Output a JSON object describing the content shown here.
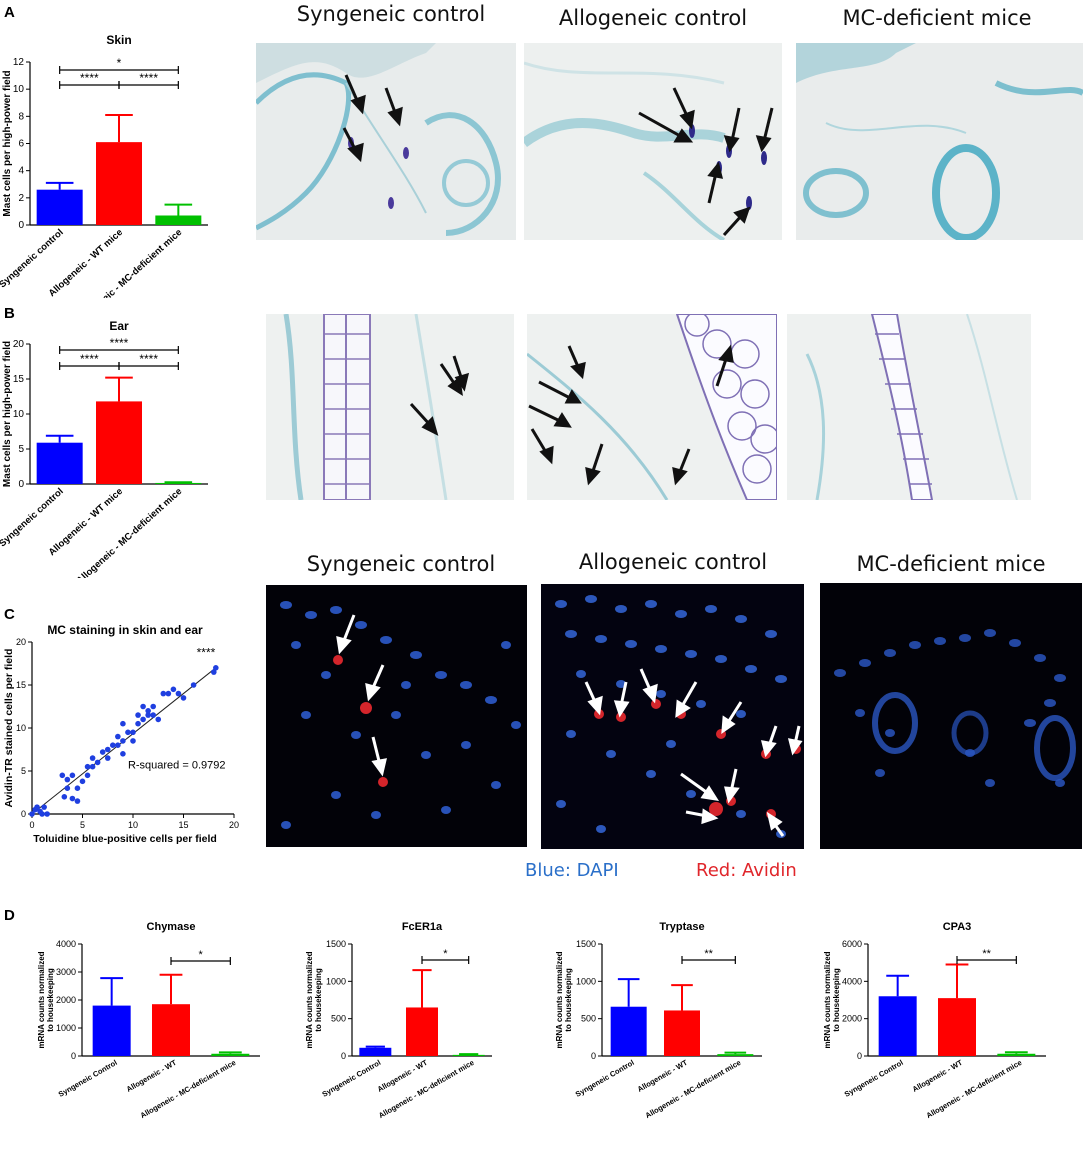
{
  "panels": {
    "A": {
      "letter": "A"
    },
    "B": {
      "letter": "B"
    },
    "C": {
      "letter": "C"
    },
    "D": {
      "letter": "D"
    }
  },
  "headers": {
    "row1": [
      "Syngeneic control",
      "Allogeneic control",
      "MC-deficient mice"
    ],
    "row3": [
      "Syngeneic control",
      "Allogeneic control",
      "MC-deficient mice"
    ]
  },
  "legend": {
    "blue": "Blue: DAPI",
    "red": "Red: Avidin",
    "blue_color": "#2a6fc9",
    "red_color": "#e0262b"
  },
  "colors": {
    "syngeneic": "#0000ff",
    "allogeneic": "#ff0000",
    "deficient": "#00c000",
    "scatter": "#1f3fe0"
  },
  "chart_data": [
    {
      "id": "A",
      "type": "bar",
      "title": "Skin",
      "ylabel": "Mast cells per high-power field",
      "xlabel": "",
      "categories": [
        "Syngeneic control",
        "Allogeneic - WT mice",
        "Allogeneic - MC-deficient mice"
      ],
      "values": [
        2.6,
        6.1,
        0.7
      ],
      "errors": [
        0.5,
        2.0,
        0.8
      ],
      "ylim": [
        0,
        12
      ],
      "yticks": [
        0,
        2,
        4,
        6,
        8,
        10,
        12
      ],
      "significance": [
        {
          "from": 0,
          "to": 1,
          "label": "****",
          "level": 1
        },
        {
          "from": 1,
          "to": 2,
          "label": "****",
          "level": 1
        },
        {
          "from": 0,
          "to": 2,
          "label": "*",
          "level": 2
        }
      ]
    },
    {
      "id": "B",
      "type": "bar",
      "title": "Ear",
      "ylabel": "Mast cells per high-power field",
      "xlabel": "",
      "categories": [
        "Syngeneic control",
        "Allogeneic - WT mice",
        "Allogeneic - MC-deficient mice"
      ],
      "values": [
        5.9,
        11.8,
        0.15
      ],
      "errors": [
        1.0,
        3.4,
        0.1
      ],
      "ylim": [
        0,
        20
      ],
      "yticks": [
        0,
        5,
        10,
        15,
        20
      ],
      "significance": [
        {
          "from": 0,
          "to": 1,
          "label": "****",
          "level": 1
        },
        {
          "from": 1,
          "to": 2,
          "label": "****",
          "level": 1
        },
        {
          "from": 0,
          "to": 2,
          "label": "****",
          "level": 2
        }
      ]
    },
    {
      "id": "C",
      "type": "scatter",
      "title": "MC staining in skin and ear",
      "xlabel": "Toluidine blue-positive cells per field",
      "ylabel": "Avidin-TR stained cells per field",
      "xlim": [
        0,
        20
      ],
      "ylim": [
        0,
        20
      ],
      "xticks": [
        0,
        5,
        10,
        15,
        20
      ],
      "yticks": [
        0,
        5,
        10,
        15,
        20
      ],
      "annotation": "R-squared = 0.9792",
      "significance": "****",
      "fit": {
        "x": [
          0,
          18.2
        ],
        "y": [
          0,
          17.0
        ]
      },
      "points": [
        [
          0,
          0
        ],
        [
          0.3,
          0.5
        ],
        [
          0.5,
          0.8
        ],
        [
          0.8,
          0.3
        ],
        [
          1,
          0
        ],
        [
          1.2,
          0.8
        ],
        [
          1.5,
          0
        ],
        [
          3,
          4.5
        ],
        [
          3.2,
          2
        ],
        [
          3.5,
          3
        ],
        [
          3.5,
          4
        ],
        [
          4,
          4.5
        ],
        [
          4,
          1.8
        ],
        [
          4.5,
          1.5
        ],
        [
          4.5,
          3
        ],
        [
          5,
          3.8
        ],
        [
          5.5,
          4.5
        ],
        [
          5.5,
          5.5
        ],
        [
          6,
          5.5
        ],
        [
          6,
          6.5
        ],
        [
          6.5,
          6
        ],
        [
          7,
          7.2
        ],
        [
          7.5,
          7.5
        ],
        [
          7.5,
          6.5
        ],
        [
          8,
          8
        ],
        [
          8.5,
          8
        ],
        [
          8.5,
          9
        ],
        [
          9,
          8.5
        ],
        [
          9,
          7
        ],
        [
          9.5,
          9.5
        ],
        [
          9,
          10.5
        ],
        [
          10,
          8.5
        ],
        [
          10,
          9.5
        ],
        [
          10.5,
          10.5
        ],
        [
          10.5,
          11.5
        ],
        [
          11,
          11
        ],
        [
          11,
          12.5
        ],
        [
          11.5,
          11.5
        ],
        [
          11.5,
          12
        ],
        [
          12,
          12.5
        ],
        [
          12,
          11.5
        ],
        [
          12.5,
          11
        ],
        [
          13,
          14
        ],
        [
          13.5,
          14
        ],
        [
          14,
          14.5
        ],
        [
          14.5,
          14
        ],
        [
          15,
          13.5
        ],
        [
          16,
          15
        ],
        [
          18,
          16.5
        ],
        [
          18.2,
          17
        ]
      ]
    },
    {
      "id": "D1",
      "type": "bar",
      "title": "Chymase",
      "ylabel": "mRNA counts normalized to housekeeping",
      "xlabel": "",
      "categories": [
        "Syngeneic Control",
        "Allogeneic - WT",
        "Allogeneic - MC-deficient mice"
      ],
      "values": [
        1800,
        1850,
        80
      ],
      "errors": [
        980,
        1050,
        50
      ],
      "ylim": [
        0,
        4000
      ],
      "yticks": [
        0,
        1000,
        2000,
        3000,
        4000
      ],
      "significance": [
        {
          "from": 1,
          "to": 2,
          "label": "*",
          "level": 1
        }
      ]
    },
    {
      "id": "D2",
      "type": "bar",
      "title": "FcER1a",
      "ylabel": "mRNA counts normalized to housekeeping",
      "xlabel": "",
      "categories": [
        "Syngeneic Control",
        "Allogeneic - WT",
        "Allogeneic - MC-deficient mice"
      ],
      "values": [
        110,
        650,
        15
      ],
      "errors": [
        15,
        500,
        10
      ],
      "ylim": [
        0,
        1500
      ],
      "yticks": [
        0,
        500,
        1000,
        1500
      ],
      "significance": [
        {
          "from": 1,
          "to": 2,
          "label": "*",
          "level": 1
        }
      ]
    },
    {
      "id": "D3",
      "type": "bar",
      "title": "Tryptase",
      "ylabel": "mRNA counts normalized to housekeeping",
      "xlabel": "",
      "categories": [
        "Syngeneic Control",
        "Allogeneic - WT",
        "Allogeneic - MC-deficient mice"
      ],
      "values": [
        660,
        610,
        25
      ],
      "errors": [
        370,
        340,
        20
      ],
      "ylim": [
        0,
        1500
      ],
      "yticks": [
        0,
        500,
        1000,
        1500
      ],
      "significance": [
        {
          "from": 1,
          "to": 2,
          "label": "**",
          "level": 1
        }
      ]
    },
    {
      "id": "D4",
      "type": "bar",
      "title": "CPA3",
      "ylabel": "mRNA counts normalized to housekeeping",
      "xlabel": "",
      "categories": [
        "Syngeneic Control",
        "Allogeneic - WT",
        "Allogeneic - MC-deficient mice"
      ],
      "values": [
        3200,
        3100,
        120
      ],
      "errors": [
        1100,
        1800,
        80
      ],
      "ylim": [
        0,
        6000
      ],
      "yticks": [
        0,
        2000,
        4000,
        6000
      ],
      "significance": [
        {
          "from": 1,
          "to": 2,
          "label": "**",
          "level": 1
        }
      ]
    }
  ]
}
